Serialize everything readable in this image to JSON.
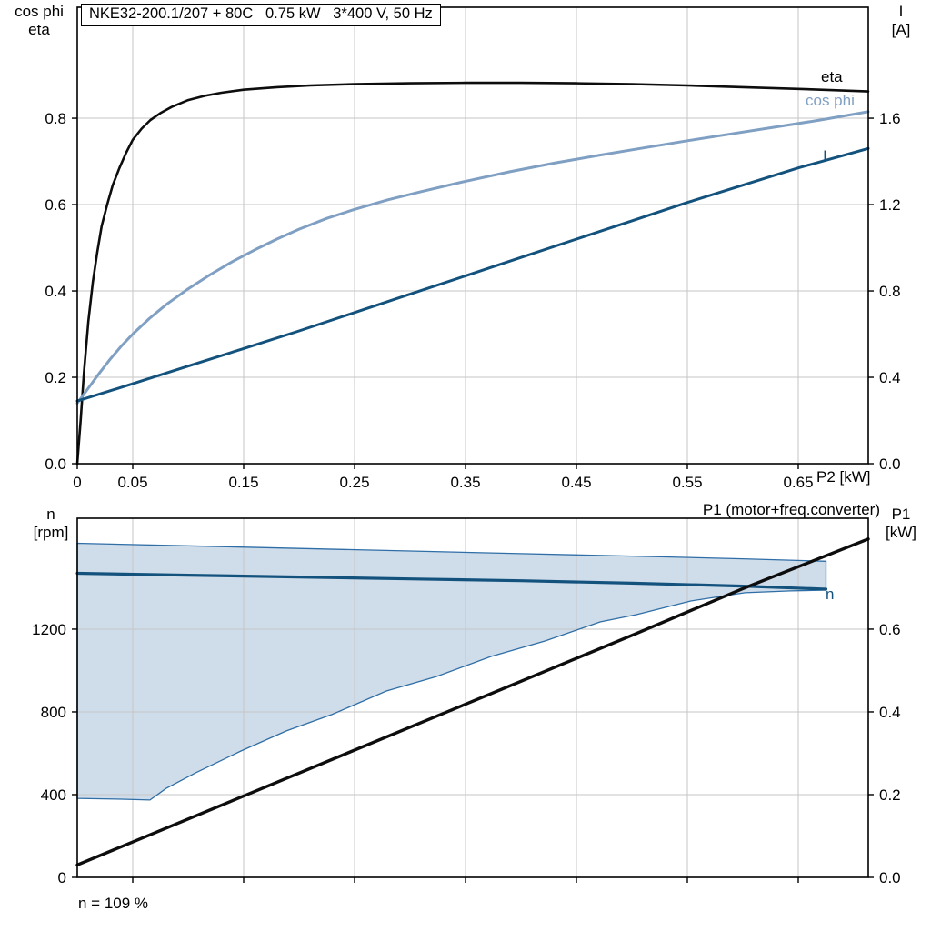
{
  "colors": {
    "black": "#0d0d0d",
    "light_blue": "#7f9fc3",
    "dark_blue": "#14527e",
    "band_fill": "#cfdcea",
    "band_stroke": "#2f6ea6",
    "grid": "#c6c6c6",
    "axis": "#000000",
    "background": "#ffffff"
  },
  "labels": {
    "y1_left_line1": "cos phi",
    "y1_left_line2": "eta",
    "y1_right_line1": "I",
    "y1_right_line2": "[A]",
    "x_title": "P2 [kW]",
    "y2_left_line1": "n",
    "y2_left_line2": "[rpm]",
    "y2_right_line1": "P1",
    "y2_right_line2": "[kW]",
    "p1_curve_label": "P1 (motor+freq.converter)"
  },
  "chart_data": [
    {
      "type": "line",
      "title": "NKE32-200.1/207 + 80C   0.75 kW   3*400 V, 50 Hz",
      "x_axis": {
        "label": "P2 [kW]",
        "range": [
          0,
          0.71311
        ],
        "ticks": [
          {
            "v": 0,
            "label": "0"
          },
          {
            "v": 0.05,
            "label": "0.05"
          },
          {
            "v": 0.15,
            "label": "0.15"
          },
          {
            "v": 0.25,
            "label": "0.25"
          },
          {
            "v": 0.35,
            "label": "0.35"
          },
          {
            "v": 0.45,
            "label": "0.45"
          },
          {
            "v": 0.55,
            "label": "0.55"
          },
          {
            "v": 0.65,
            "label": "0.65"
          }
        ]
      },
      "y_left": {
        "label": "cos phi / eta",
        "range": [
          0,
          1.057
        ],
        "ticks": [
          {
            "v": 0,
            "label": "0.0"
          },
          {
            "v": 0.2,
            "label": "0.2"
          },
          {
            "v": 0.4,
            "label": "0.4"
          },
          {
            "v": 0.6,
            "label": "0.6"
          },
          {
            "v": 0.8,
            "label": "0.8"
          }
        ]
      },
      "y_right": {
        "label": "I [A]",
        "range": [
          0,
          2.114
        ],
        "ticks": [
          {
            "v": 0,
            "label": "0.0"
          },
          {
            "v": 0.4,
            "label": "0.4"
          },
          {
            "v": 0.8,
            "label": "0.8"
          },
          {
            "v": 1.2,
            "label": "1.2"
          },
          {
            "v": 1.6,
            "label": "1.6"
          }
        ]
      },
      "series": [
        {
          "name": "eta",
          "axis": "left",
          "color": "black",
          "width": 2.6,
          "points": [
            [
              0,
              0
            ],
            [
              0.003,
              0.1
            ],
            [
              0.006,
              0.21
            ],
            [
              0.01,
              0.33
            ],
            [
              0.014,
              0.42
            ],
            [
              0.018,
              0.49
            ],
            [
              0.022,
              0.55
            ],
            [
              0.027,
              0.6
            ],
            [
              0.032,
              0.645
            ],
            [
              0.038,
              0.685
            ],
            [
              0.044,
              0.72
            ],
            [
              0.05,
              0.75
            ],
            [
              0.058,
              0.776
            ],
            [
              0.066,
              0.796
            ],
            [
              0.075,
              0.812
            ],
            [
              0.085,
              0.826
            ],
            [
              0.1,
              0.842
            ],
            [
              0.115,
              0.852
            ],
            [
              0.13,
              0.859
            ],
            [
              0.15,
              0.866
            ],
            [
              0.18,
              0.872
            ],
            [
              0.21,
              0.876
            ],
            [
              0.25,
              0.879
            ],
            [
              0.3,
              0.881
            ],
            [
              0.35,
              0.882
            ],
            [
              0.4,
              0.882
            ],
            [
              0.45,
              0.881
            ],
            [
              0.5,
              0.879
            ],
            [
              0.55,
              0.876
            ],
            [
              0.6,
              0.872
            ],
            [
              0.65,
              0.868
            ],
            [
              0.7131,
              0.862
            ]
          ]
        },
        {
          "name": "cos phi",
          "axis": "left",
          "color": "light_blue",
          "width": 3,
          "points": [
            [
              0,
              0.14
            ],
            [
              0.01,
              0.175
            ],
            [
              0.02,
              0.21
            ],
            [
              0.03,
              0.243
            ],
            [
              0.04,
              0.273
            ],
            [
              0.05,
              0.3
            ],
            [
              0.065,
              0.336
            ],
            [
              0.08,
              0.368
            ],
            [
              0.1,
              0.405
            ],
            [
              0.12,
              0.438
            ],
            [
              0.14,
              0.468
            ],
            [
              0.16,
              0.495
            ],
            [
              0.18,
              0.52
            ],
            [
              0.2,
              0.543
            ],
            [
              0.225,
              0.568
            ],
            [
              0.25,
              0.589
            ],
            [
              0.28,
              0.611
            ],
            [
              0.31,
              0.63
            ],
            [
              0.35,
              0.654
            ],
            [
              0.39,
              0.676
            ],
            [
              0.43,
              0.696
            ],
            [
              0.47,
              0.714
            ],
            [
              0.51,
              0.731
            ],
            [
              0.55,
              0.748
            ],
            [
              0.59,
              0.764
            ],
            [
              0.63,
              0.78
            ],
            [
              0.67,
              0.796
            ],
            [
              0.7131,
              0.815
            ]
          ]
        },
        {
          "name": "I",
          "axis": "right",
          "color": "dark_blue",
          "width": 3,
          "points": [
            [
              0,
              0.29
            ],
            [
              0.05,
              0.37
            ],
            [
              0.1,
              0.452
            ],
            [
              0.15,
              0.533
            ],
            [
              0.2,
              0.615
            ],
            [
              0.25,
              0.7
            ],
            [
              0.3,
              0.785
            ],
            [
              0.35,
              0.87
            ],
            [
              0.4,
              0.955
            ],
            [
              0.45,
              1.04
            ],
            [
              0.5,
              1.125
            ],
            [
              0.55,
              1.21
            ],
            [
              0.6,
              1.29
            ],
            [
              0.65,
              1.37
            ],
            [
              0.7131,
              1.46
            ]
          ]
        }
      ]
    },
    {
      "type": "line",
      "title": "",
      "annotation": "n = 109 %",
      "x_axis": {
        "label": "",
        "range": [
          0,
          0.71311
        ],
        "ticks": [
          {
            "v": 0.05,
            "label": ""
          },
          {
            "v": 0.15,
            "label": ""
          },
          {
            "v": 0.25,
            "label": ""
          },
          {
            "v": 0.35,
            "label": ""
          },
          {
            "v": 0.45,
            "label": ""
          },
          {
            "v": 0.55,
            "label": ""
          },
          {
            "v": 0.65,
            "label": ""
          }
        ]
      },
      "y_left": {
        "label": "n [rpm]",
        "range": [
          0,
          1736
        ],
        "ticks": [
          {
            "v": 0,
            "label": "0"
          },
          {
            "v": 400,
            "label": "400"
          },
          {
            "v": 800,
            "label": "800"
          },
          {
            "v": 1200,
            "label": "1200"
          }
        ]
      },
      "y_right": {
        "label": "P1 [kW]",
        "range": [
          0,
          0.868
        ],
        "ticks": [
          {
            "v": 0,
            "label": "0.0"
          },
          {
            "v": 0.2,
            "label": "0.2"
          },
          {
            "v": 0.4,
            "label": "0.4"
          },
          {
            "v": 0.6,
            "label": "0.6"
          }
        ]
      },
      "band": {
        "axis": "left",
        "upper": [
          [
            0,
            1615
          ],
          [
            0.1,
            1603
          ],
          [
            0.2,
            1590
          ],
          [
            0.3,
            1578
          ],
          [
            0.4,
            1565
          ],
          [
            0.5,
            1553
          ],
          [
            0.6,
            1540
          ],
          [
            0.675,
            1528
          ]
        ],
        "lower": [
          [
            0,
            382
          ],
          [
            0.04,
            378
          ],
          [
            0.0656,
            374
          ],
          [
            0.08,
            430
          ],
          [
            0.1066,
            505
          ],
          [
            0.1475,
            611
          ],
          [
            0.1885,
            708
          ],
          [
            0.2295,
            787
          ],
          [
            0.2787,
            901
          ],
          [
            0.3238,
            971
          ],
          [
            0.373,
            1068
          ],
          [
            0.422,
            1143
          ],
          [
            0.4713,
            1235
          ],
          [
            0.504,
            1270
          ],
          [
            0.553,
            1336
          ],
          [
            0.602,
            1376
          ],
          [
            0.643,
            1385
          ],
          [
            0.675,
            1389
          ]
        ]
      },
      "series": [
        {
          "name": "n",
          "axis": "left",
          "color": "dark_blue",
          "width": 3.2,
          "points": [
            [
              0,
              1470
            ],
            [
              0.1,
              1461
            ],
            [
              0.2,
              1452
            ],
            [
              0.3,
              1443
            ],
            [
              0.4,
              1434
            ],
            [
              0.5,
              1422
            ],
            [
              0.6,
              1408
            ],
            [
              0.675,
              1393
            ]
          ]
        },
        {
          "name": "P1",
          "axis": "right",
          "color": "black",
          "width": 3.4,
          "points": [
            [
              0,
              0.03
            ],
            [
              0.1,
              0.141
            ],
            [
              0.2,
              0.252
            ],
            [
              0.3,
              0.363
            ],
            [
              0.4,
              0.474
            ],
            [
              0.5,
              0.585
            ],
            [
              0.6,
              0.698
            ],
            [
              0.7131,
              0.818
            ]
          ]
        }
      ]
    }
  ]
}
